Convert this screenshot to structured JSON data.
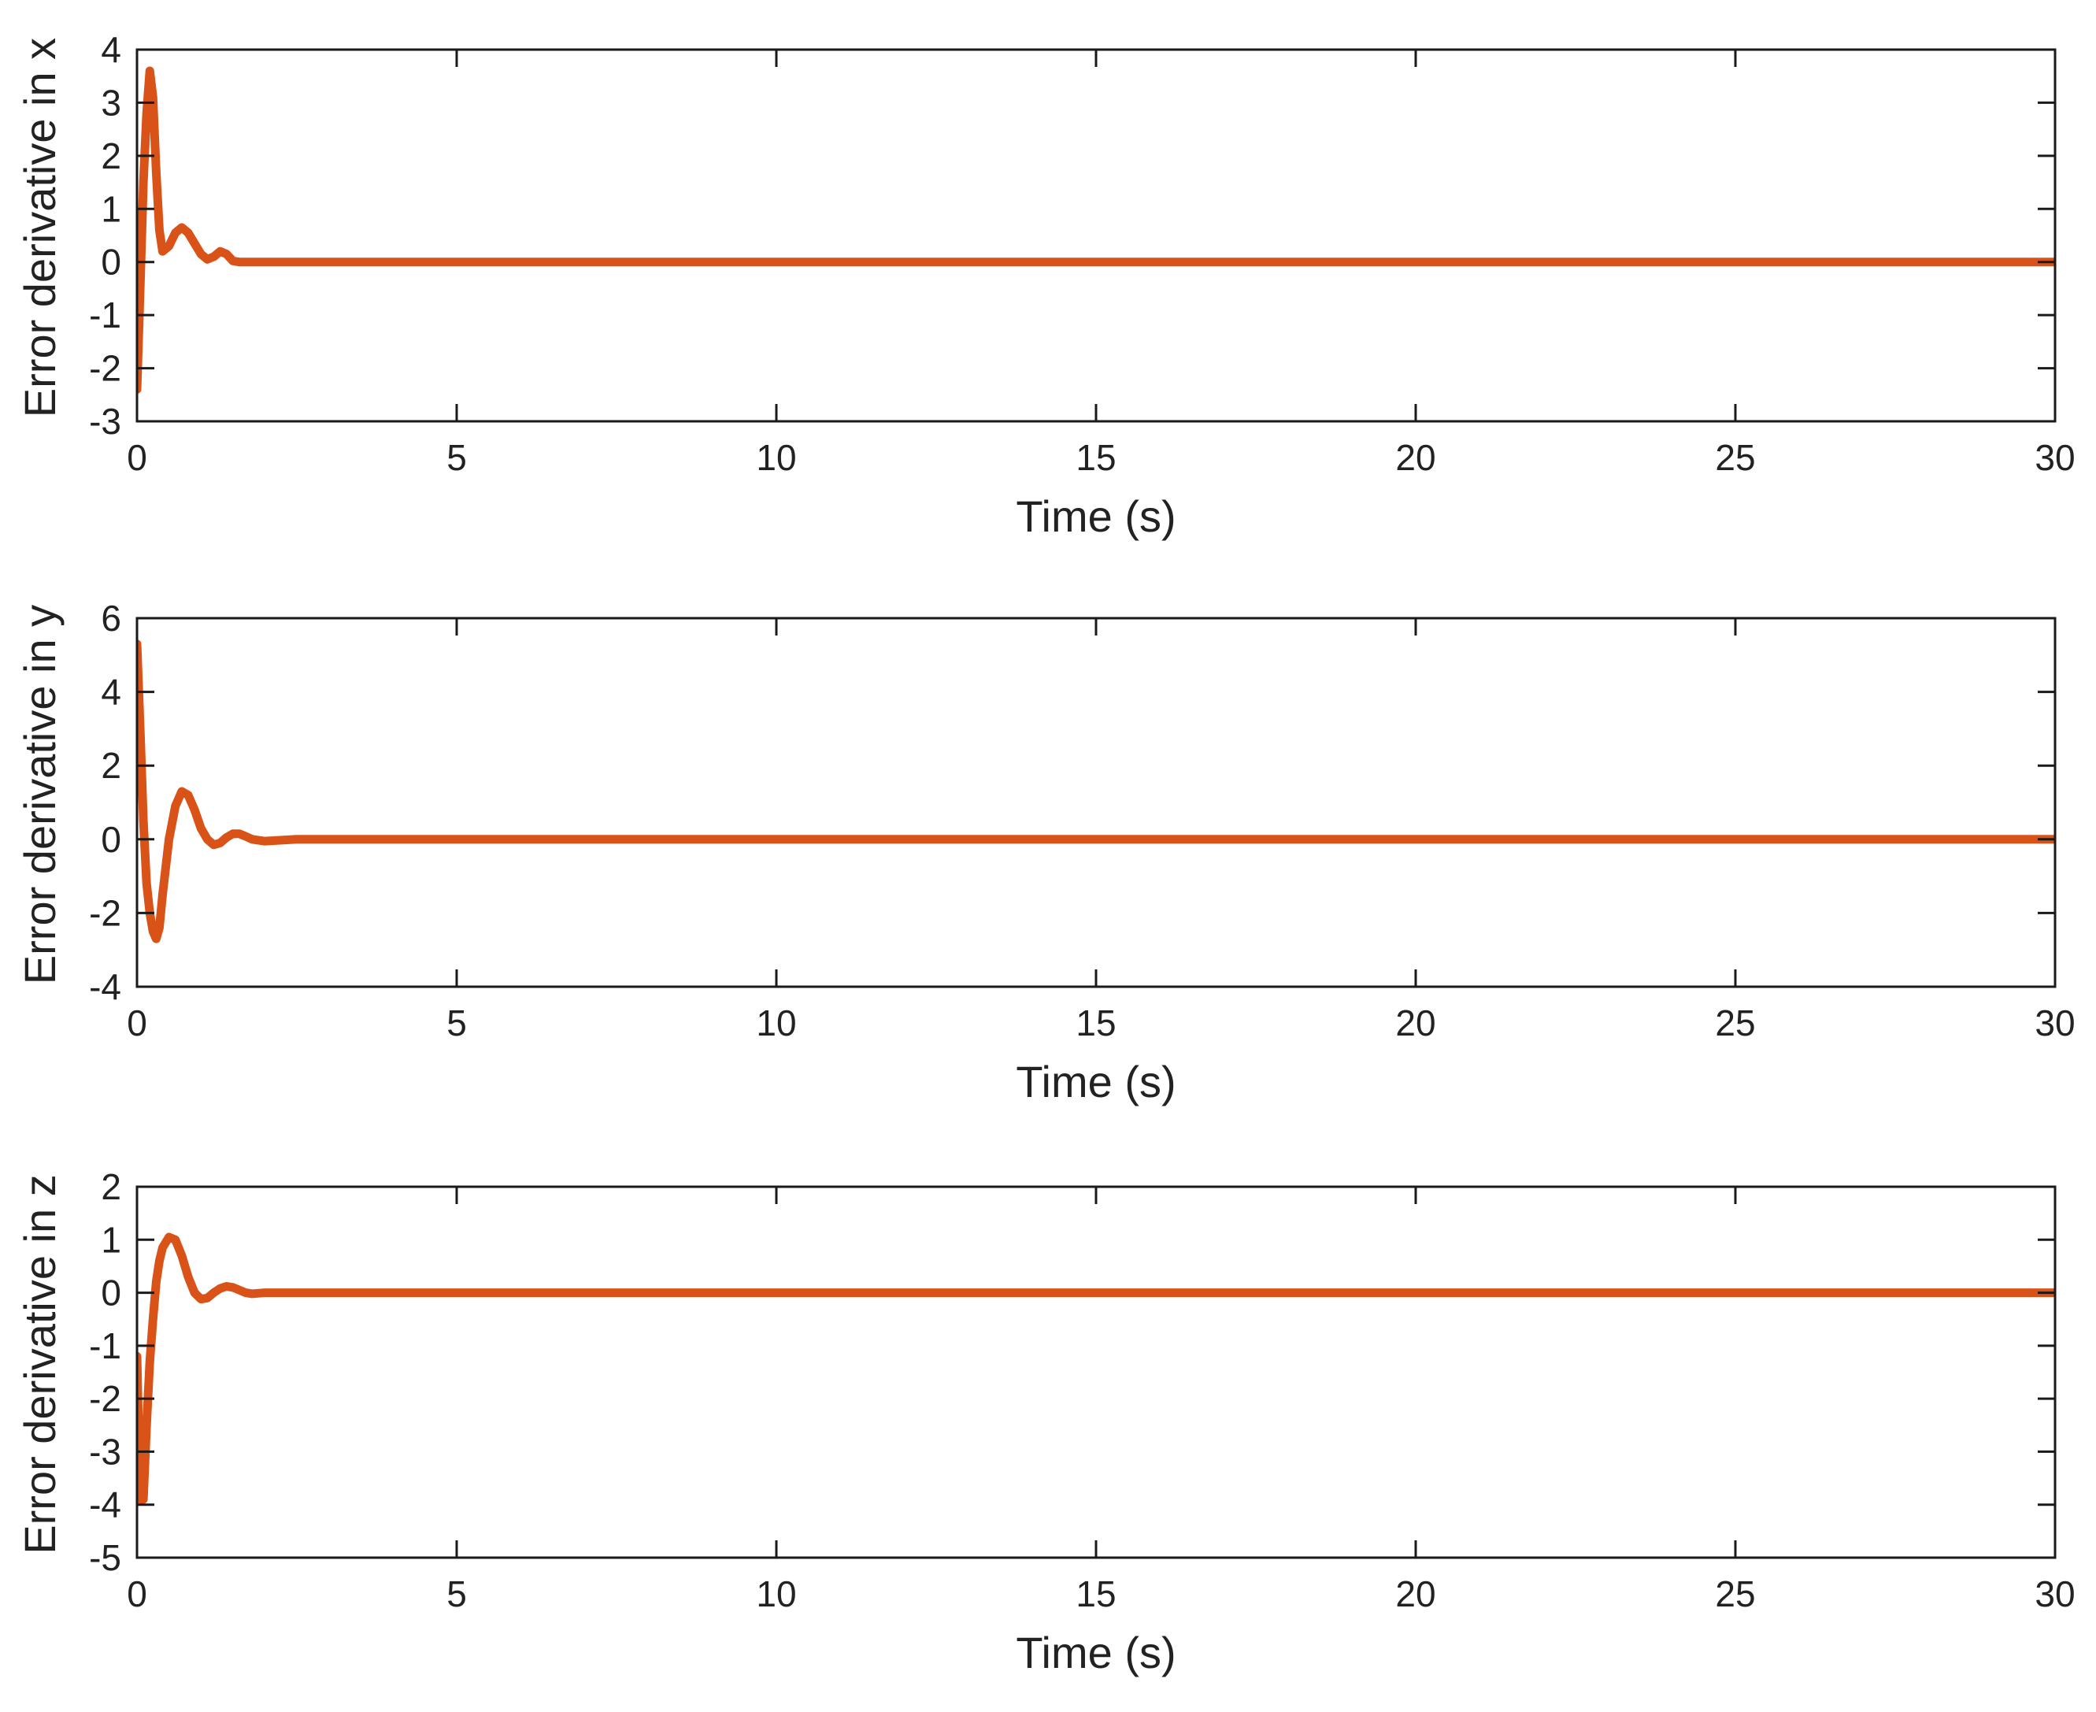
{
  "chart_data": [
    {
      "type": "line",
      "title": "",
      "xlabel": "Time (s)",
      "ylabel": "Error derivative in x",
      "xlim": [
        0,
        30
      ],
      "ylim": [
        -3,
        4
      ],
      "xticks": [
        0,
        5,
        10,
        15,
        20,
        25,
        30
      ],
      "yticks": [
        -3,
        -2,
        -1,
        0,
        1,
        2,
        3,
        4
      ],
      "grid": false,
      "color": "#d95319",
      "series": [
        {
          "x": [
            0,
            0.05,
            0.1,
            0.15,
            0.2,
            0.25,
            0.3,
            0.35,
            0.4,
            0.5,
            0.6,
            0.7,
            0.8,
            0.9,
            1.0,
            1.1,
            1.2,
            1.3,
            1.4,
            1.5,
            1.6,
            1.8,
            2.0,
            2.5,
            3.0,
            30
          ],
          "y": [
            -2.4,
            -0.5,
            1.5,
            2.8,
            3.6,
            3.1,
            1.7,
            0.6,
            0.2,
            0.3,
            0.55,
            0.65,
            0.55,
            0.35,
            0.15,
            0.05,
            0.1,
            0.2,
            0.15,
            0.02,
            0,
            0,
            0,
            0,
            0,
            0
          ]
        }
      ]
    },
    {
      "type": "line",
      "title": "",
      "xlabel": "Time (s)",
      "ylabel": "Error derivative in y",
      "xlim": [
        0,
        30
      ],
      "ylim": [
        -4,
        6
      ],
      "xticks": [
        0,
        5,
        10,
        15,
        20,
        25,
        30
      ],
      "yticks": [
        -4,
        -2,
        0,
        2,
        4,
        6
      ],
      "grid": false,
      "color": "#d95319",
      "series": [
        {
          "x": [
            0,
            0.05,
            0.1,
            0.15,
            0.2,
            0.25,
            0.3,
            0.35,
            0.4,
            0.5,
            0.6,
            0.7,
            0.8,
            0.9,
            1.0,
            1.1,
            1.2,
            1.3,
            1.4,
            1.5,
            1.6,
            1.7,
            1.8,
            2.0,
            2.5,
            3.0,
            30
          ],
          "y": [
            5.3,
            3.0,
            0.5,
            -1.2,
            -2.0,
            -2.5,
            -2.7,
            -2.4,
            -1.5,
            0.0,
            0.9,
            1.3,
            1.2,
            0.8,
            0.3,
            0.0,
            -0.15,
            -0.1,
            0.05,
            0.15,
            0.15,
            0.08,
            0.0,
            -0.05,
            0,
            0,
            0
          ]
        }
      ]
    },
    {
      "type": "line",
      "title": "",
      "xlabel": "Time (s)",
      "ylabel": "Error derivative in z",
      "xlim": [
        0,
        30
      ],
      "ylim": [
        -5,
        2
      ],
      "xticks": [
        0,
        5,
        10,
        15,
        20,
        25,
        30
      ],
      "yticks": [
        -5,
        -4,
        -3,
        -2,
        -1,
        0,
        1,
        2
      ],
      "grid": false,
      "color": "#d95319",
      "series": [
        {
          "x": [
            0,
            0.05,
            0.1,
            0.15,
            0.2,
            0.25,
            0.3,
            0.35,
            0.4,
            0.5,
            0.6,
            0.7,
            0.8,
            0.9,
            1.0,
            1.1,
            1.2,
            1.3,
            1.4,
            1.5,
            1.6,
            1.7,
            1.8,
            2.0,
            2.5,
            3.0,
            30
          ],
          "y": [
            -1.2,
            -3.9,
            -3.9,
            -2.5,
            -1.3,
            -0.5,
            0.2,
            0.6,
            0.85,
            1.05,
            1.0,
            0.7,
            0.3,
            0.0,
            -0.12,
            -0.1,
            0.0,
            0.08,
            0.12,
            0.1,
            0.05,
            0.0,
            -0.02,
            0,
            0,
            0,
            0
          ]
        }
      ]
    }
  ]
}
